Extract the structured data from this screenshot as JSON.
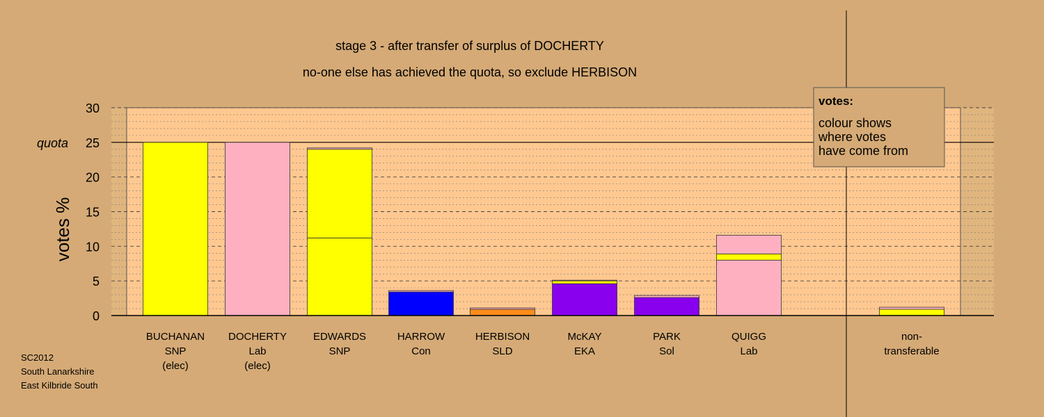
{
  "chart_data": {
    "type": "bar",
    "stacked": true,
    "title": "stage 3 - after transfer of surplus of DOCHERTY",
    "subtitle": "no-one else has achieved the quota, so exclude HERBISON",
    "ylabel": "votes %",
    "ylim": [
      0,
      30
    ],
    "yticks": [
      "0",
      "5",
      "10",
      "15",
      "20",
      "25",
      "30"
    ],
    "quota_label": "quota",
    "quota_value": 25,
    "grid": true,
    "categories": [
      {
        "lines": [
          "BUCHANAN",
          "SNP",
          "(elec)"
        ]
      },
      {
        "lines": [
          "DOCHERTY",
          "Lab",
          "(elec)"
        ]
      },
      {
        "lines": [
          "EDWARDS",
          "SNP"
        ]
      },
      {
        "lines": [
          "HARROW",
          "Con"
        ]
      },
      {
        "lines": [
          "HERBISON",
          "SLD"
        ]
      },
      {
        "lines": [
          "McKAY",
          "EKA"
        ]
      },
      {
        "lines": [
          "PARK",
          "Sol"
        ]
      },
      {
        "lines": [
          "QUIGG",
          "Lab"
        ]
      },
      {
        "lines": [
          "non-",
          "transferable"
        ]
      }
    ],
    "bars": [
      [
        {
          "value": 25.0,
          "color": "#ffff00"
        }
      ],
      [
        {
          "value": 25.0,
          "color": "#ffb0c0"
        }
      ],
      [
        {
          "value": 11.2,
          "color": "#ffff00"
        },
        {
          "value": 12.8,
          "color": "#ffff00"
        },
        {
          "value": 0.2,
          "color": "#ffb0c0"
        }
      ],
      [
        {
          "value": 3.4,
          "color": "#0000ff"
        },
        {
          "value": 0.2,
          "color": "#ffb0c0"
        }
      ],
      [
        {
          "value": 0.9,
          "color": "#ff8c1a"
        },
        {
          "value": 0.2,
          "color": "#ffb0c0"
        }
      ],
      [
        {
          "value": 4.6,
          "color": "#8800ee"
        },
        {
          "value": 0.4,
          "color": "#ffff00"
        },
        {
          "value": 0.1,
          "color": "#ffb0c0"
        }
      ],
      [
        {
          "value": 2.6,
          "color": "#8800ee"
        },
        {
          "value": 0.3,
          "color": "#ffb0c0"
        }
      ],
      [
        {
          "value": 8.0,
          "color": "#ffb0c0"
        },
        {
          "value": 0.9,
          "color": "#ffff00"
        },
        {
          "value": 2.7,
          "color": "#ffb0c0"
        }
      ],
      [
        {
          "value": 0.9,
          "color": "#ffff00"
        },
        {
          "value": 0.3,
          "color": "#ffb0c0"
        }
      ]
    ],
    "legend": {
      "title": "votes:",
      "lines": [
        "colour shows",
        "where votes",
        "have come from"
      ],
      "position": "top-right"
    },
    "source": [
      "SC2012",
      "South Lanarkshire",
      "East Kilbride South"
    ],
    "colors": {
      "background": "#d5aa76",
      "plot_background": "#ffc890",
      "margin_band": "#e0b57e"
    }
  }
}
